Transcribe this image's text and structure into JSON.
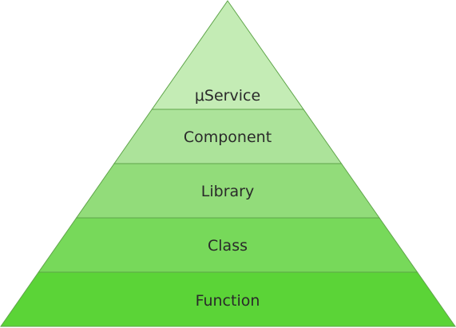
{
  "pyramid": {
    "tiers": [
      {
        "label": "μService",
        "color": "#c4ecb5"
      },
      {
        "label": "Component",
        "color": "#ace39a"
      },
      {
        "label": "Library",
        "color": "#92dc7a"
      },
      {
        "label": "Class",
        "color": "#77d95a"
      },
      {
        "label": "Function",
        "color": "#5bd437"
      }
    ],
    "outline_color": "#5fa54a"
  }
}
